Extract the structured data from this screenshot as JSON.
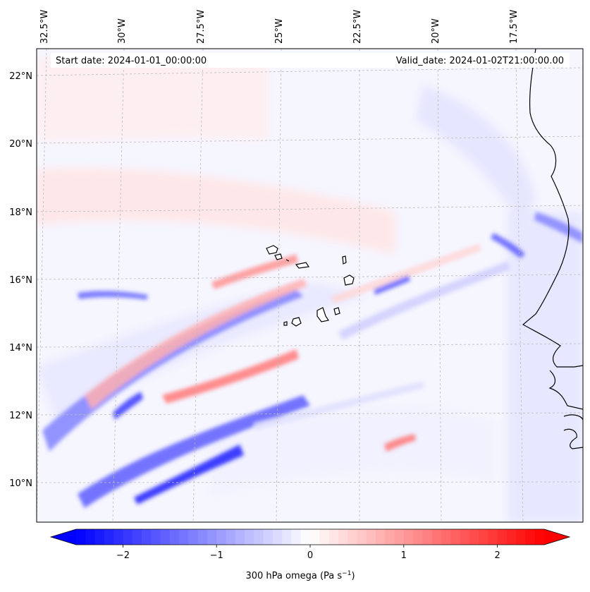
{
  "header": {
    "start_label": "Start date: 2024-01-01_00:00:00",
    "valid_label": "Valid_date: 2024-01-02T21:00:00.00"
  },
  "lon_ticks": [
    "32.5°W",
    "30°W",
    "27.5°W",
    "25°W",
    "22.5°W",
    "20°W",
    "17.5°W"
  ],
  "lat_ticks": [
    "22°N",
    "20°N",
    "18°N",
    "16°N",
    "14°N",
    "12°N",
    "10°N"
  ],
  "colorbar": {
    "tick_labels": [
      "−2",
      "−1",
      "0",
      "1",
      "2"
    ],
    "tick_values": [
      -2,
      -1,
      0,
      1,
      2
    ],
    "range": [
      -2.5,
      2.5
    ],
    "levels": 50,
    "label_main": "300 hPa omega (Pa s",
    "label_sup": "−1",
    "label_end": ")",
    "colors": {
      "negative": "#0000ff",
      "zero": "#ffffff",
      "positive": "#ff0000"
    }
  },
  "map": {
    "lon_range": [
      "33°W",
      "16°W"
    ],
    "lat_range": [
      "9°N",
      "22.8°N"
    ],
    "coastline_color": "#000000",
    "grid_color": "#bbbbbb"
  }
}
